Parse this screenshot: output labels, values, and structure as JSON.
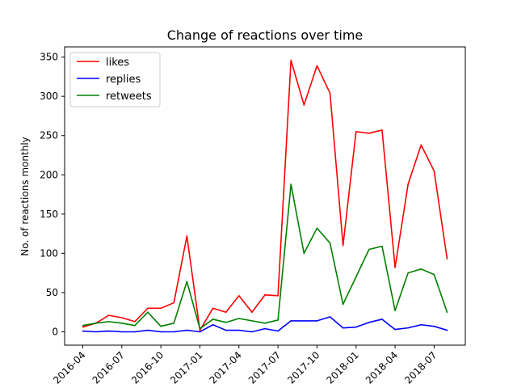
{
  "chart_data": {
    "type": "line",
    "title": "Change of reactions over time",
    "xlabel": "",
    "ylabel": "No. of reactions monthly",
    "x": [
      "2016-04",
      "2016-05",
      "2016-06",
      "2016-07",
      "2016-08",
      "2016-09",
      "2016-10",
      "2016-11",
      "2016-12",
      "2017-01",
      "2017-02",
      "2017-03",
      "2017-04",
      "2017-05",
      "2017-06",
      "2017-07",
      "2017-08",
      "2017-09",
      "2017-10",
      "2017-11",
      "2017-12",
      "2018-01",
      "2018-02",
      "2018-03",
      "2018-04",
      "2018-05",
      "2018-06",
      "2018-07",
      "2018-08"
    ],
    "x_ticks": [
      "2016-04",
      "2016-07",
      "2016-10",
      "2017-01",
      "2017-04",
      "2017-07",
      "2017-10",
      "2018-01",
      "2018-04",
      "2018-07"
    ],
    "ylim": [
      -17,
      363
    ],
    "y_ticks": [
      0,
      50,
      100,
      150,
      200,
      250,
      300,
      350
    ],
    "grid": false,
    "legend_position": "top-left",
    "series": [
      {
        "name": "likes",
        "color": "#ff0000",
        "values": [
          6,
          11,
          21,
          18,
          13,
          30,
          30,
          37,
          122,
          2,
          30,
          25,
          46,
          25,
          47,
          46,
          346,
          289,
          339,
          304,
          110,
          255,
          253,
          257,
          82,
          188,
          238,
          205,
          93
        ]
      },
      {
        "name": "replies",
        "color": "#0000ff",
        "values": [
          1,
          0,
          1,
          0,
          0,
          2,
          0,
          0,
          2,
          0,
          9,
          2,
          2,
          0,
          4,
          1,
          14,
          14,
          14,
          19,
          5,
          6,
          12,
          16,
          3,
          5,
          9,
          7,
          2
        ]
      },
      {
        "name": "retweets",
        "color": "#008000",
        "values": [
          8,
          11,
          13,
          11,
          8,
          25,
          7,
          11,
          64,
          4,
          16,
          12,
          17,
          14,
          11,
          15,
          188,
          100,
          132,
          113,
          35,
          70,
          105,
          109,
          27,
          75,
          80,
          73,
          25
        ]
      }
    ]
  }
}
